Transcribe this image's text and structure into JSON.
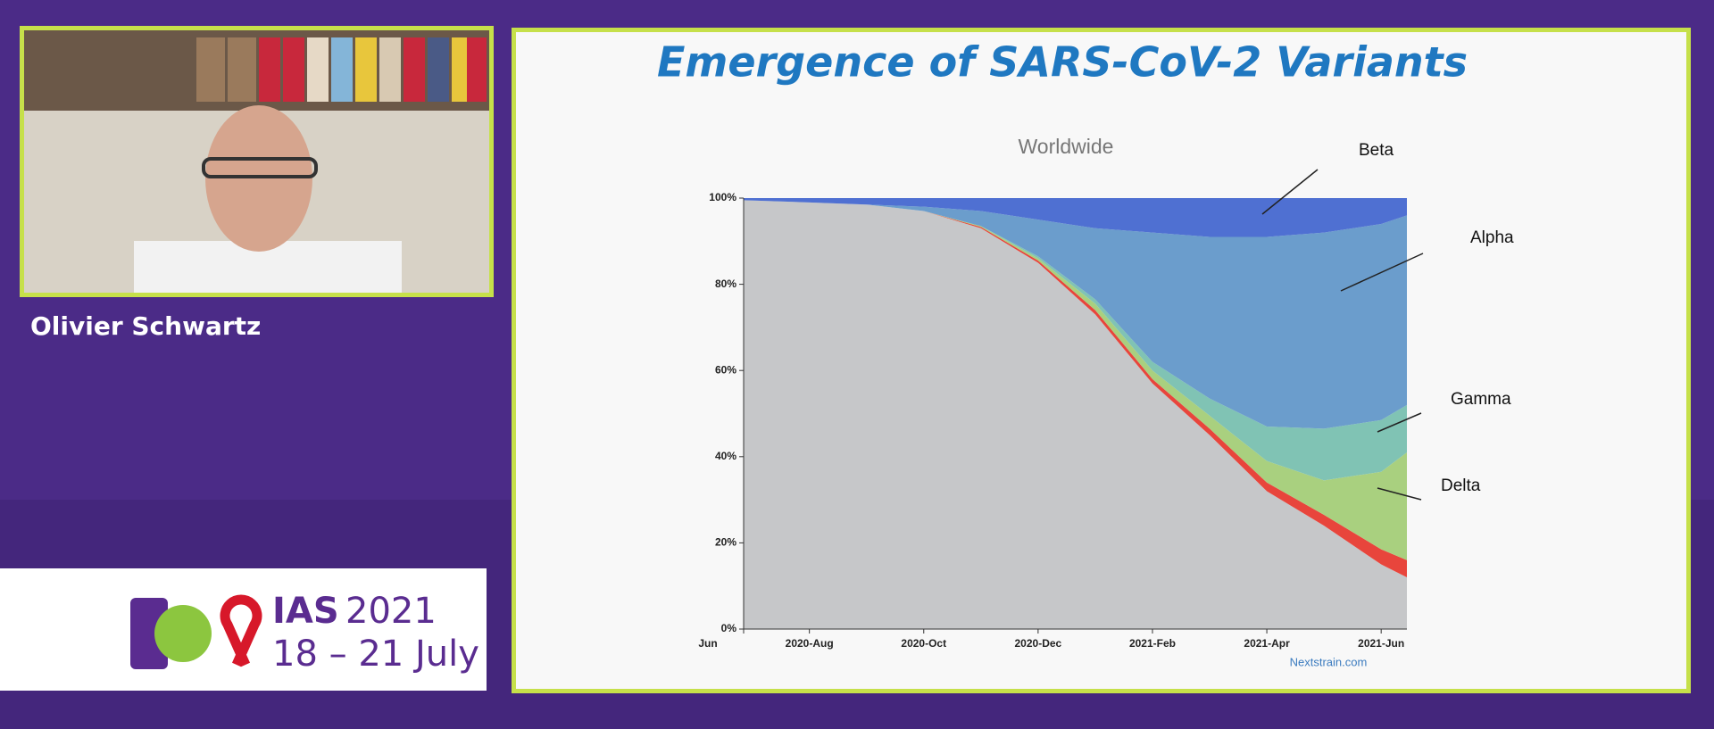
{
  "speaker": {
    "name": "Olivier Schwartz"
  },
  "logo": {
    "name": "IAS",
    "year": "2021",
    "dates": "18 – 21 July"
  },
  "slide": {
    "title": "Emergence of SARS-CoV-2 Variants",
    "source": "Nextstrain.com"
  },
  "chart_data": {
    "type": "area",
    "stacked": true,
    "title": "Worldwide",
    "x": [
      0.85,
      2,
      3,
      4,
      5,
      6,
      7,
      8,
      9,
      10,
      11,
      12,
      12.45
    ],
    "xlim": [
      0.85,
      12.45
    ],
    "xticks": [
      {
        "value": 0.85,
        "label": "Jun"
      },
      {
        "value": 2,
        "label": "2020-Aug"
      },
      {
        "value": 4,
        "label": "2020-Oct"
      },
      {
        "value": 6,
        "label": "2020-Dec"
      },
      {
        "value": 8,
        "label": "2021-Feb"
      },
      {
        "value": 10,
        "label": "2021-Apr"
      },
      {
        "value": 12,
        "label": "2021-Jun"
      }
    ],
    "ylim": [
      0,
      100
    ],
    "yticks": [
      {
        "value": 0,
        "label": "0%"
      },
      {
        "value": 20,
        "label": "20%"
      },
      {
        "value": 40,
        "label": "40%"
      },
      {
        "value": 60,
        "label": "60%"
      },
      {
        "value": 80,
        "label": "80%"
      },
      {
        "value": 100,
        "label": "100%"
      }
    ],
    "series": [
      {
        "color": "#c6c7c9",
        "values": [
          99.5,
          99,
          98.5,
          97,
          93,
          85,
          73,
          57,
          45,
          32,
          24,
          15,
          12
        ]
      },
      {
        "color": "#e8453c",
        "values": [
          0,
          0,
          0,
          0,
          0.3,
          0.5,
          1,
          1,
          1.5,
          2,
          2.5,
          3.5,
          4
        ]
      },
      {
        "name": "Delta",
        "color": "#a9d07f",
        "values": [
          0,
          0,
          0,
          0,
          0.2,
          0.5,
          1.5,
          2,
          3,
          5,
          8,
          18,
          25
        ]
      },
      {
        "name": "Gamma",
        "color": "#80c3b4",
        "values": [
          0,
          0,
          0,
          0,
          0,
          0.5,
          1,
          2,
          4,
          8,
          12,
          12,
          11
        ]
      },
      {
        "name": "Alpha",
        "color": "#6b9dcc",
        "values": [
          0,
          0,
          0,
          1,
          3.5,
          8.5,
          16.5,
          30,
          37.5,
          44,
          45.5,
          45.5,
          44
        ]
      },
      {
        "name": "Beta",
        "color": "#4f70d2",
        "values": [
          0.5,
          1,
          1.5,
          2,
          3,
          5,
          7,
          8,
          9,
          9,
          8,
          6,
          4
        ]
      }
    ]
  }
}
